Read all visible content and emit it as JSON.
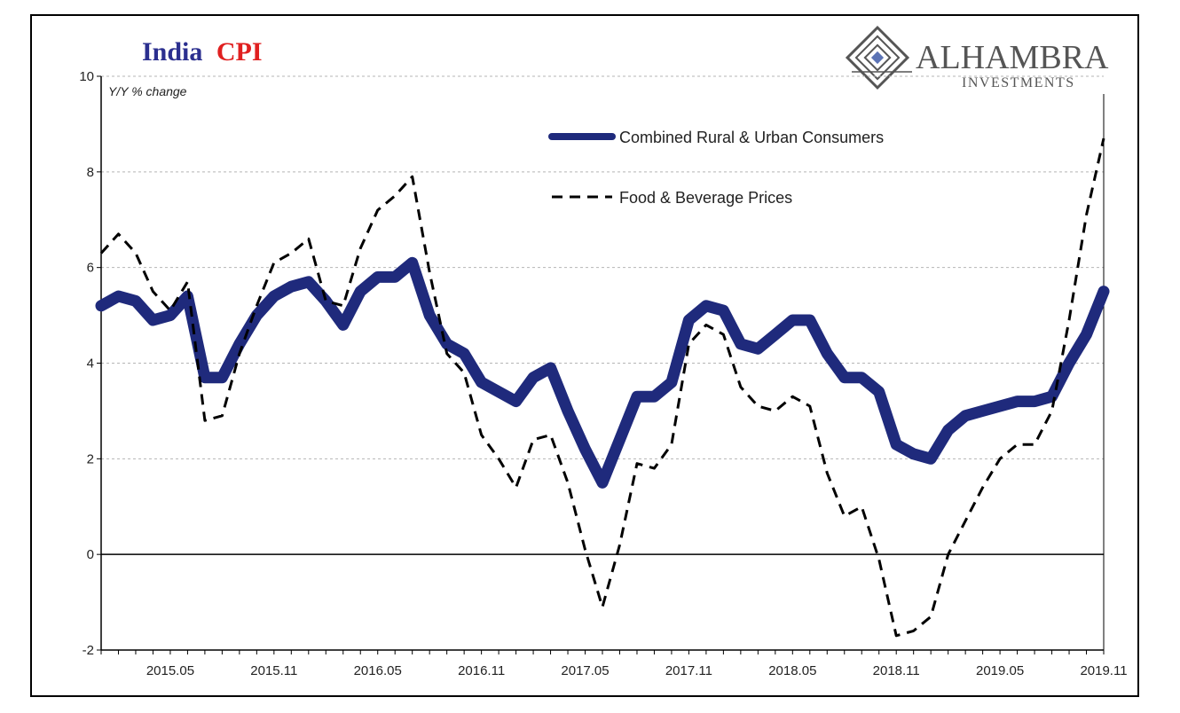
{
  "header": {
    "title_part1": "India",
    "title_part2": "CPI",
    "title_color_1": "#2b2f8f",
    "title_color_2": "#e02020"
  },
  "logo": {
    "name": "ALHAMBRA",
    "subtitle": "INVESTMENTS",
    "icon": "alhambra-diamond-icon",
    "color": "#555555",
    "accent": "#5b73b5"
  },
  "chart_data": {
    "type": "line",
    "title": "India CPI",
    "ylabel": "Y/Y % change",
    "xlabel": "",
    "ylim": [
      -2,
      10
    ],
    "yticks": [
      -2,
      0,
      2,
      4,
      6,
      8,
      10
    ],
    "x_range": [
      "2015.01",
      "2019.11"
    ],
    "x": [
      "2015.01",
      "2015.02",
      "2015.03",
      "2015.04",
      "2015.05",
      "2015.06",
      "2015.07",
      "2015.08",
      "2015.09",
      "2015.10",
      "2015.11",
      "2015.12",
      "2016.01",
      "2016.02",
      "2016.03",
      "2016.04",
      "2016.05",
      "2016.06",
      "2016.07",
      "2016.08",
      "2016.09",
      "2016.10",
      "2016.11",
      "2016.12",
      "2017.01",
      "2017.02",
      "2017.03",
      "2017.04",
      "2017.05",
      "2017.06",
      "2017.07",
      "2017.08",
      "2017.09",
      "2017.10",
      "2017.11",
      "2017.12",
      "2018.01",
      "2018.02",
      "2018.03",
      "2018.04",
      "2018.05",
      "2018.06",
      "2018.07",
      "2018.08",
      "2018.09",
      "2018.10",
      "2018.11",
      "2018.12",
      "2019.01",
      "2019.02",
      "2019.03",
      "2019.04",
      "2019.05",
      "2019.06",
      "2019.07",
      "2019.08",
      "2019.09",
      "2019.10",
      "2019.11"
    ],
    "tick_labels": [
      "2015.05",
      "2015.11",
      "2016.05",
      "2016.11",
      "2017.05",
      "2017.11",
      "2018.05",
      "2018.11",
      "2019.05",
      "2019.11"
    ],
    "tick_indices": [
      4,
      10,
      16,
      22,
      28,
      34,
      40,
      46,
      52,
      58
    ],
    "series": [
      {
        "name": "Combined Rural & Urban Consumers",
        "style": "solid",
        "color": "#1f2a7c",
        "values": [
          5.2,
          5.4,
          5.3,
          4.9,
          5.0,
          5.4,
          3.7,
          3.7,
          4.4,
          5.0,
          5.4,
          5.6,
          5.7,
          5.3,
          4.8,
          5.5,
          5.8,
          5.8,
          6.1,
          5.0,
          4.4,
          4.2,
          3.6,
          3.4,
          3.2,
          3.7,
          3.9,
          3.0,
          2.2,
          1.5,
          2.4,
          3.3,
          3.3,
          3.6,
          4.9,
          5.2,
          5.1,
          4.4,
          4.3,
          4.6,
          4.9,
          4.9,
          4.2,
          3.7,
          3.7,
          3.4,
          2.3,
          2.1,
          2.0,
          2.6,
          2.9,
          3.0,
          3.1,
          3.2,
          3.2,
          3.3,
          4.0,
          4.6,
          5.5
        ]
      },
      {
        "name": "Food & Beverage Prices",
        "style": "dashed",
        "color": "#000000",
        "values": [
          6.3,
          6.7,
          6.3,
          5.5,
          5.1,
          5.7,
          2.8,
          2.9,
          4.2,
          5.2,
          6.1,
          6.3,
          6.6,
          5.3,
          5.2,
          6.4,
          7.2,
          7.5,
          7.9,
          5.9,
          4.2,
          3.8,
          2.5,
          2.0,
          1.4,
          2.4,
          2.5,
          1.5,
          0.1,
          -1.1,
          0.2,
          1.9,
          1.8,
          2.3,
          4.4,
          4.8,
          4.6,
          3.5,
          3.1,
          3.0,
          3.3,
          3.1,
          1.7,
          0.8,
          1.0,
          -0.1,
          -1.7,
          -1.6,
          -1.3,
          0.0,
          0.7,
          1.4,
          2.0,
          2.3,
          2.3,
          3.0,
          4.9,
          7.1,
          8.7
        ]
      }
    ],
    "legend": [
      "Combined Rural & Urban Consumers",
      "Food & Beverage Prices"
    ],
    "legend_position": "top-center",
    "grid": true
  }
}
